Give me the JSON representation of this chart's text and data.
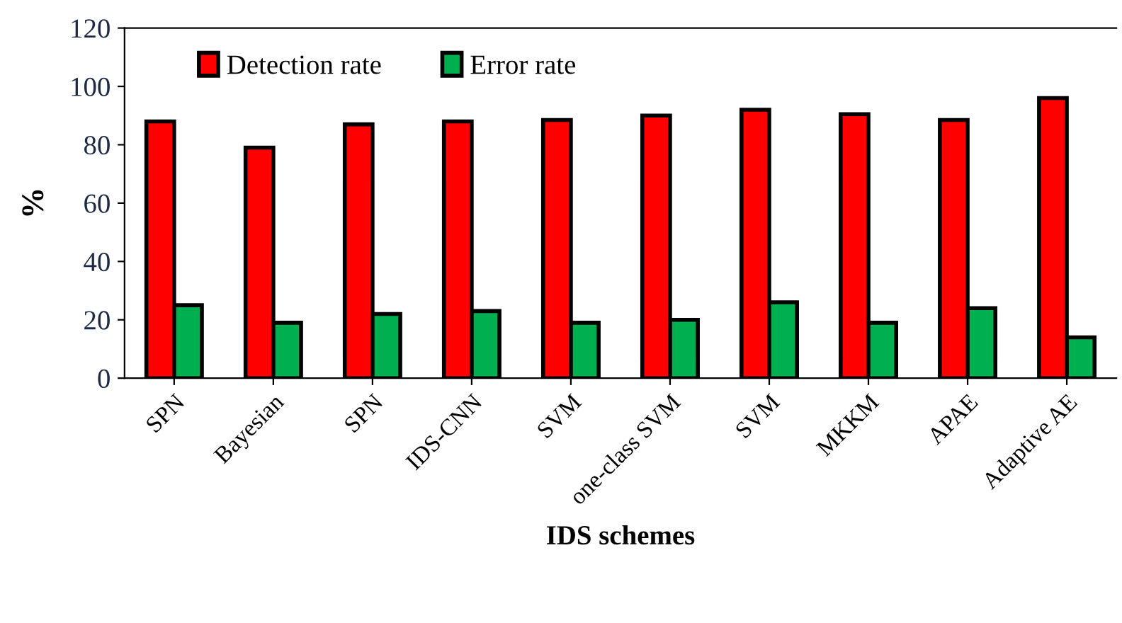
{
  "chart_data": {
    "type": "bar",
    "xlabel": "IDS schemes",
    "ylabel": "%",
    "categories": [
      "SPN",
      "Bayesian",
      "SPN",
      "IDS-CNN",
      "SVM",
      "one-class SVM",
      "SVM",
      "MKKM",
      "APAE",
      "Adaptive AE"
    ],
    "series": [
      {
        "name": "Detection rate",
        "color": "#ff0000",
        "values": [
          88,
          79,
          87,
          88,
          88.5,
          90,
          92,
          90.5,
          88.5,
          96
        ]
      },
      {
        "name": "Error rate",
        "color": "#00b050",
        "values": [
          25,
          19,
          22,
          23,
          19,
          20,
          26,
          19,
          24,
          14
        ]
      }
    ],
    "ylim": [
      0,
      120
    ],
    "yticks": [
      0,
      20,
      40,
      60,
      80,
      100,
      120
    ],
    "grid": false,
    "legend": "top left"
  }
}
